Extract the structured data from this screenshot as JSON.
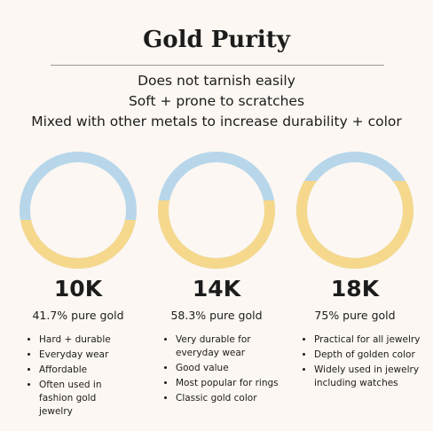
{
  "header": {
    "title": "Gold Purity",
    "lines": [
      "Does not tarnish easily",
      "Soft + prone to scratches",
      "Mixed with other metals to increase durability + color"
    ]
  },
  "columns": [
    {
      "karat": "10K",
      "percent": 41.7,
      "label": "41.7% pure gold",
      "items": [
        "Hard + durable",
        "Everyday wear",
        "Affordable",
        "Often used in fashion gold jewelry"
      ]
    },
    {
      "karat": "14K",
      "percent": 58.3,
      "label": "58.3% pure gold",
      "items": [
        "Very durable for everyday wear",
        "Good value",
        "Most popular for rings",
        "Classic gold color"
      ]
    },
    {
      "karat": "18K",
      "percent": 75,
      "label": "75% pure gold",
      "items": [
        "Practical for all jewelry",
        "Depth of golden color",
        "Widely used in jewelry including watches"
      ]
    }
  ]
}
